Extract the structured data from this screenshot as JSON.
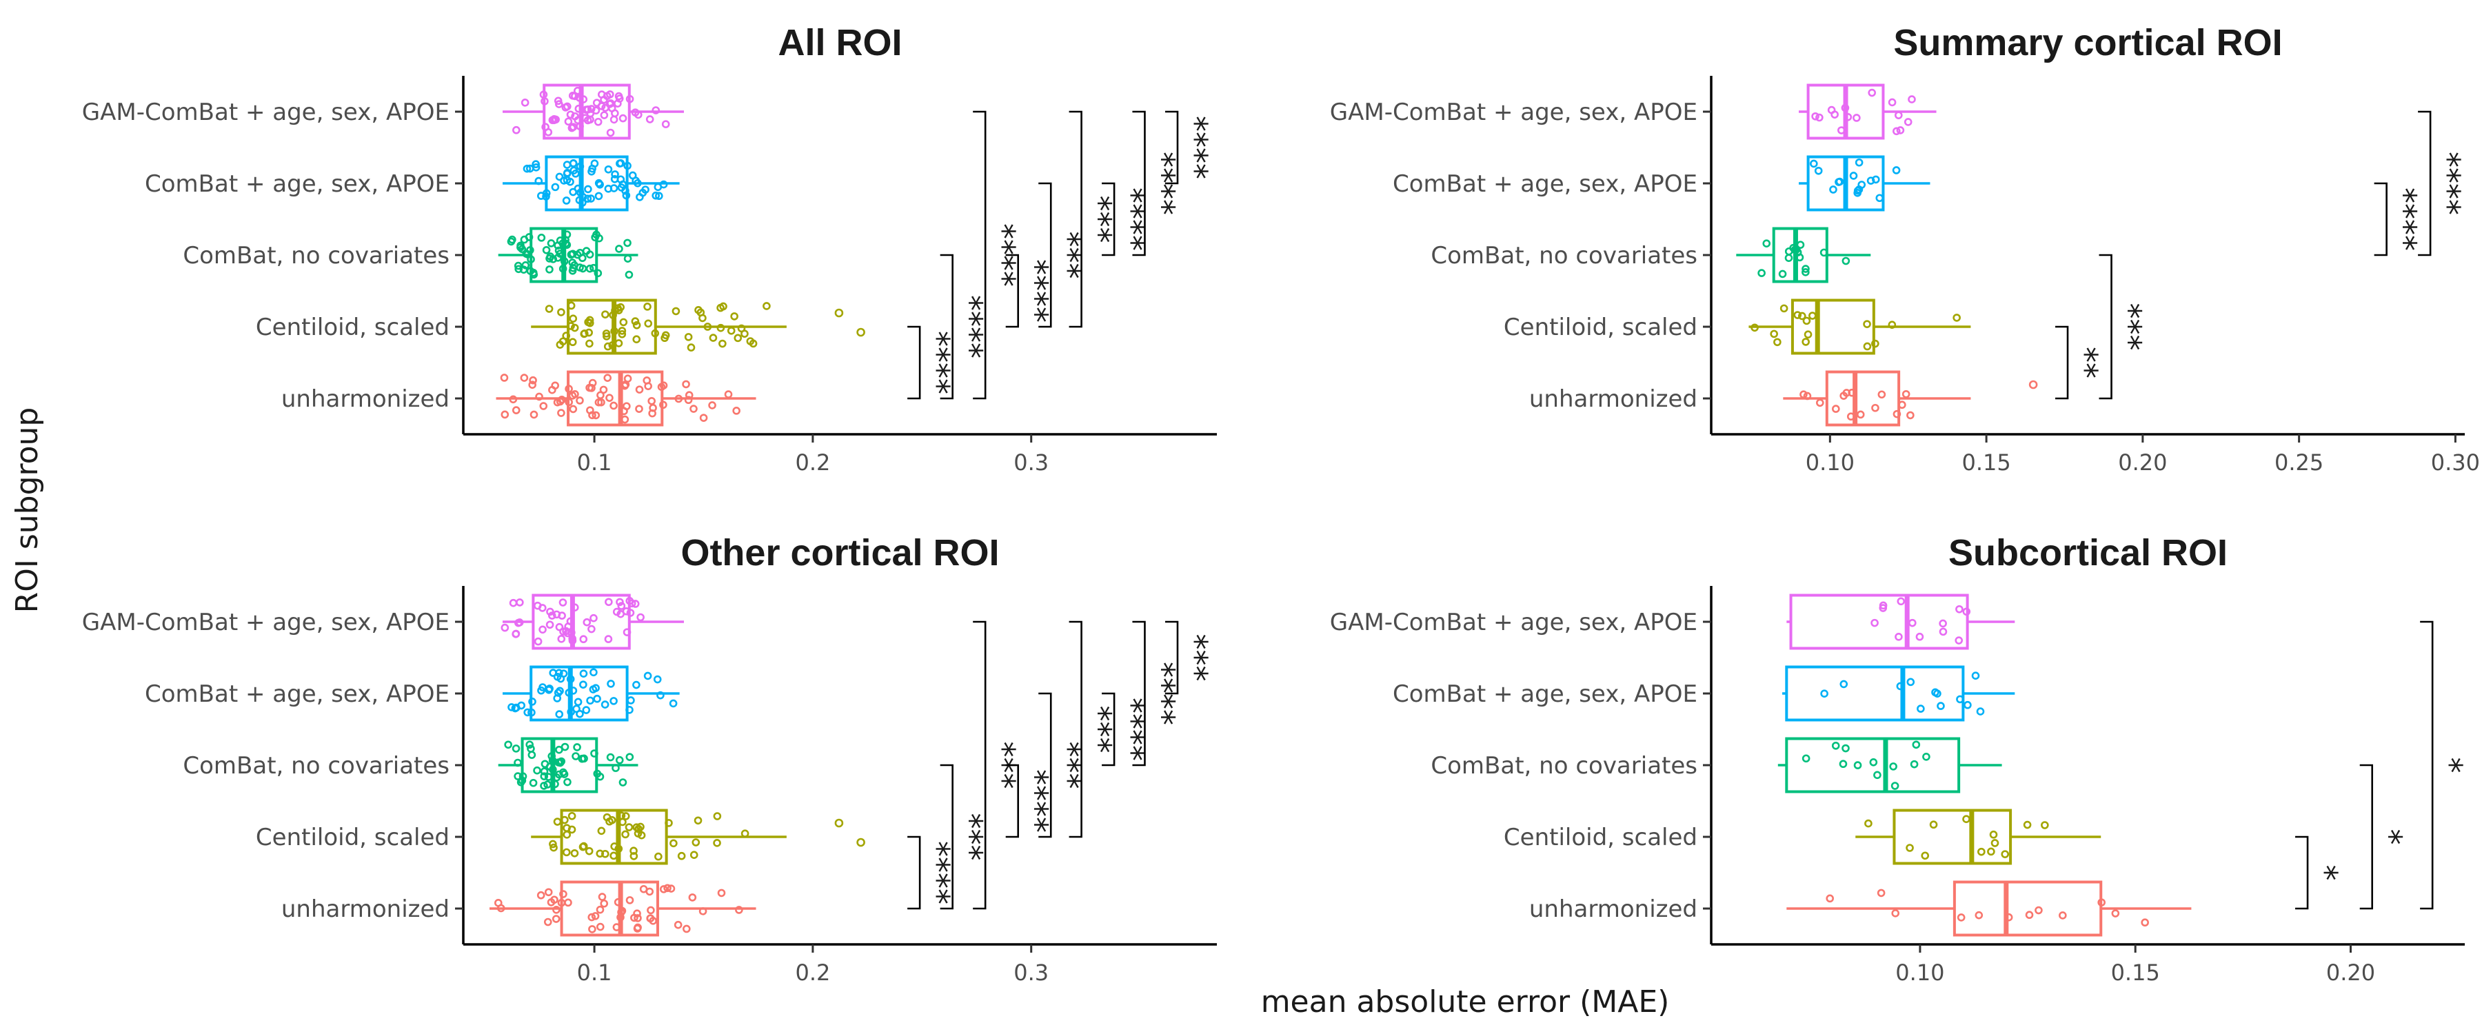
{
  "figure": {
    "xlabel": "mean absolute error (MAE)",
    "ylabel": "ROI subgroup"
  },
  "colors": {
    "unharmonized": "#F8766D",
    "Centiloid, scaled": "#A3A500",
    "ComBat, no covariates": "#00BF7D",
    "ComBat + age, sex, APOE": "#00B0F6",
    "GAM-ComBat + age, sex, APOE": "#E76BF3"
  },
  "chart_data": [
    {
      "type": "boxplot",
      "title": "All ROI",
      "categories": [
        "GAM-ComBat + age, sex, APOE",
        "ComBat + age, sex, APOE",
        "ComBat, no covariates",
        "Centiloid, scaled",
        "unharmonized"
      ],
      "xlim": [
        0.04,
        0.385
      ],
      "xticks": [
        0.1,
        0.2,
        0.3
      ],
      "xtick_labels": [
        "0.1",
        "0.2",
        "0.3"
      ],
      "boxes": [
        {
          "category": "GAM-ComBat + age, sex, APOE",
          "whisker_low": 0.058,
          "q1": 0.077,
          "median": 0.094,
          "q3": 0.116,
          "whisker_high": 0.141,
          "n_points": 60
        },
        {
          "category": "ComBat + age, sex, APOE",
          "whisker_low": 0.058,
          "q1": 0.078,
          "median": 0.094,
          "q3": 0.115,
          "whisker_high": 0.139,
          "n_points": 60
        },
        {
          "category": "ComBat, no covariates",
          "whisker_low": 0.056,
          "q1": 0.071,
          "median": 0.086,
          "q3": 0.101,
          "whisker_high": 0.12,
          "n_points": 60
        },
        {
          "category": "Centiloid, scaled",
          "whisker_low": 0.071,
          "q1": 0.088,
          "median": 0.109,
          "q3": 0.128,
          "whisker_high": 0.188,
          "outliers": [
            0.212,
            0.222
          ],
          "n_points": 60
        },
        {
          "category": "unharmonized",
          "whisker_low": 0.055,
          "q1": 0.088,
          "median": 0.112,
          "q3": 0.131,
          "whisker_high": 0.174,
          "n_points": 60
        }
      ],
      "comparisons": [
        {
          "from": "Centiloid, scaled",
          "to": "unharmonized",
          "x": 0.249,
          "label": "****"
        },
        {
          "from": "ComBat, no covariates",
          "to": "unharmonized",
          "x": 0.264,
          "label": "****"
        },
        {
          "from": "GAM-ComBat + age, sex, APOE",
          "to": "unharmonized",
          "x": 0.279,
          "label": "****"
        },
        {
          "from": "ComBat, no covariates",
          "to": "Centiloid, scaled",
          "x": 0.294,
          "label": "****"
        },
        {
          "from": "ComBat + age, sex, APOE",
          "to": "Centiloid, scaled",
          "x": 0.309,
          "label": "***"
        },
        {
          "from": "GAM-ComBat + age, sex, APOE",
          "to": "Centiloid, scaled",
          "x": 0.323,
          "label": "***"
        },
        {
          "from": "ComBat + age, sex, APOE",
          "to": "ComBat, no covariates",
          "x": 0.338,
          "label": "****"
        },
        {
          "from": "GAM-ComBat + age, sex, APOE",
          "to": "ComBat, no covariates",
          "x": 0.352,
          "label": "****"
        },
        {
          "from": "GAM-ComBat + age, sex, APOE",
          "to": "ComBat + age, sex, APOE",
          "x": 0.367,
          "label": "****"
        }
      ]
    },
    {
      "type": "boxplot",
      "title": "Summary cortical ROI",
      "categories": [
        "GAM-ComBat + age, sex, APOE",
        "ComBat + age, sex, APOE",
        "ComBat, no covariates",
        "Centiloid, scaled",
        "unharmonized"
      ],
      "xlim": [
        0.062,
        0.303
      ],
      "xticks": [
        0.1,
        0.15,
        0.2,
        0.25,
        0.3
      ],
      "xtick_labels": [
        "0.10",
        "0.15",
        "0.20",
        "0.25",
        "0.30"
      ],
      "boxes": [
        {
          "category": "GAM-ComBat + age, sex, APOE",
          "whisker_low": 0.09,
          "q1": 0.093,
          "median": 0.105,
          "q3": 0.117,
          "whisker_high": 0.134,
          "n_points": 15
        },
        {
          "category": "ComBat + age, sex, APOE",
          "whisker_low": 0.09,
          "q1": 0.093,
          "median": 0.105,
          "q3": 0.117,
          "whisker_high": 0.132,
          "n_points": 15
        },
        {
          "category": "ComBat, no covariates",
          "whisker_low": 0.07,
          "q1": 0.082,
          "median": 0.089,
          "q3": 0.099,
          "whisker_high": 0.113,
          "n_points": 15
        },
        {
          "category": "Centiloid, scaled",
          "whisker_low": 0.074,
          "q1": 0.088,
          "median": 0.096,
          "q3": 0.114,
          "whisker_high": 0.145,
          "n_points": 15
        },
        {
          "category": "unharmonized",
          "whisker_low": 0.085,
          "q1": 0.099,
          "median": 0.108,
          "q3": 0.122,
          "whisker_high": 0.145,
          "outliers": [
            0.165
          ],
          "n_points": 15
        }
      ],
      "comparisons": [
        {
          "from": "Centiloid, scaled",
          "to": "unharmonized",
          "x": 0.176,
          "label": "**"
        },
        {
          "from": "ComBat, no covariates",
          "to": "unharmonized",
          "x": 0.19,
          "label": "***"
        },
        {
          "from": "ComBat + age, sex, APOE",
          "to": "ComBat, no covariates",
          "x": 0.278,
          "label": "****"
        },
        {
          "from": "GAM-ComBat + age, sex, APOE",
          "to": "ComBat, no covariates",
          "x": 0.292,
          "label": "****"
        }
      ]
    },
    {
      "type": "boxplot",
      "title": "Other cortical ROI",
      "categories": [
        "GAM-ComBat + age, sex, APOE",
        "ComBat + age, sex, APOE",
        "ComBat, no covariates",
        "Centiloid, scaled",
        "unharmonized"
      ],
      "xlim": [
        0.04,
        0.385
      ],
      "xticks": [
        0.1,
        0.2,
        0.3
      ],
      "xtick_labels": [
        "0.1",
        "0.2",
        "0.3"
      ],
      "boxes": [
        {
          "category": "GAM-ComBat + age, sex, APOE",
          "whisker_low": 0.058,
          "q1": 0.072,
          "median": 0.09,
          "q3": 0.116,
          "whisker_high": 0.141,
          "n_points": 45
        },
        {
          "category": "ComBat + age, sex, APOE",
          "whisker_low": 0.058,
          "q1": 0.071,
          "median": 0.089,
          "q3": 0.115,
          "whisker_high": 0.139,
          "n_points": 45
        },
        {
          "category": "ComBat, no covariates",
          "whisker_low": 0.056,
          "q1": 0.067,
          "median": 0.081,
          "q3": 0.101,
          "whisker_high": 0.12,
          "n_points": 45
        },
        {
          "category": "Centiloid, scaled",
          "whisker_low": 0.071,
          "q1": 0.085,
          "median": 0.111,
          "q3": 0.133,
          "whisker_high": 0.188,
          "outliers": [
            0.212,
            0.222
          ],
          "n_points": 45
        },
        {
          "category": "unharmonized",
          "whisker_low": 0.052,
          "q1": 0.085,
          "median": 0.112,
          "q3": 0.129,
          "whisker_high": 0.174,
          "n_points": 45
        }
      ],
      "comparisons": [
        {
          "from": "Centiloid, scaled",
          "to": "unharmonized",
          "x": 0.249,
          "label": "****"
        },
        {
          "from": "ComBat, no covariates",
          "to": "unharmonized",
          "x": 0.264,
          "label": "***"
        },
        {
          "from": "GAM-ComBat + age, sex, APOE",
          "to": "unharmonized",
          "x": 0.279,
          "label": "***"
        },
        {
          "from": "ComBat, no covariates",
          "to": "Centiloid, scaled",
          "x": 0.294,
          "label": "****"
        },
        {
          "from": "ComBat + age, sex, APOE",
          "to": "Centiloid, scaled",
          "x": 0.309,
          "label": "***"
        },
        {
          "from": "GAM-ComBat + age, sex, APOE",
          "to": "Centiloid, scaled",
          "x": 0.323,
          "label": "***"
        },
        {
          "from": "ComBat + age, sex, APOE",
          "to": "ComBat, no covariates",
          "x": 0.338,
          "label": "****"
        },
        {
          "from": "GAM-ComBat + age, sex, APOE",
          "to": "ComBat, no covariates",
          "x": 0.352,
          "label": "****"
        },
        {
          "from": "GAM-ComBat + age, sex, APOE",
          "to": "ComBat + age, sex, APOE",
          "x": 0.367,
          "label": "***"
        }
      ]
    },
    {
      "type": "boxplot",
      "title": "Subcortical ROI",
      "categories": [
        "GAM-ComBat + age, sex, APOE",
        "ComBat + age, sex, APOE",
        "ComBat, no covariates",
        "Centiloid, scaled",
        "unharmonized"
      ],
      "xlim": [
        0.0515,
        0.2265
      ],
      "xticks": [
        0.1,
        0.15,
        0.2
      ],
      "xtick_labels": [
        "0.10",
        "0.15",
        "0.20"
      ],
      "boxes": [
        {
          "category": "GAM-ComBat + age, sex, APOE",
          "whisker_low": 0.069,
          "q1": 0.07,
          "median": 0.097,
          "q3": 0.111,
          "whisker_high": 0.122,
          "n_points": 12
        },
        {
          "category": "ComBat + age, sex, APOE",
          "whisker_low": 0.068,
          "q1": 0.069,
          "median": 0.096,
          "q3": 0.11,
          "whisker_high": 0.122,
          "n_points": 12
        },
        {
          "category": "ComBat, no covariates",
          "whisker_low": 0.067,
          "q1": 0.069,
          "median": 0.092,
          "q3": 0.109,
          "whisker_high": 0.119,
          "n_points": 12
        },
        {
          "category": "Centiloid, scaled",
          "whisker_low": 0.085,
          "q1": 0.094,
          "median": 0.112,
          "q3": 0.121,
          "whisker_high": 0.142,
          "n_points": 12
        },
        {
          "category": "unharmonized",
          "whisker_low": 0.069,
          "q1": 0.108,
          "median": 0.12,
          "q3": 0.142,
          "whisker_high": 0.163,
          "n_points": 12
        }
      ],
      "comparisons": [
        {
          "from": "Centiloid, scaled",
          "to": "unharmonized",
          "x": 0.19,
          "label": "*"
        },
        {
          "from": "ComBat, no covariates",
          "to": "unharmonized",
          "x": 0.205,
          "label": "*"
        },
        {
          "from": "GAM-ComBat + age, sex, APOE",
          "to": "unharmonized",
          "x": 0.219,
          "label": "*"
        }
      ]
    }
  ]
}
